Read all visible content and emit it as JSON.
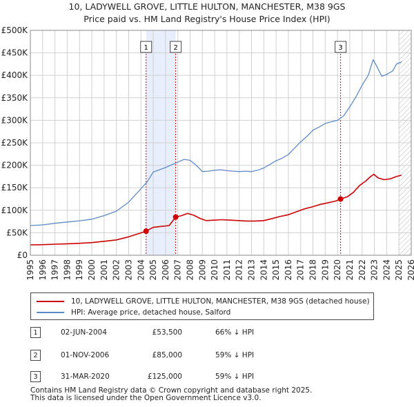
{
  "chart_data": {
    "type": "line",
    "title": "10, LADYWELL GROVE, LITTLE HULTON, MANCHESTER, M38 9GS",
    "subtitle": "Price paid vs. HM Land Registry's House Price Index (HPI)",
    "xlim": [
      1995,
      2026
    ],
    "ylim": [
      0,
      500000
    ],
    "x_ticks": [
      "1995",
      "1996",
      "1997",
      "1998",
      "1999",
      "2000",
      "2001",
      "2002",
      "2003",
      "2004",
      "2005",
      "2006",
      "2007",
      "2008",
      "2009",
      "2010",
      "2011",
      "2012",
      "2013",
      "2014",
      "2015",
      "2016",
      "2017",
      "2018",
      "2019",
      "2020",
      "2021",
      "2022",
      "2023",
      "2024",
      "2025",
      "2026"
    ],
    "y_ticks": [
      {
        "value": 0,
        "label": "£0"
      },
      {
        "value": 50000,
        "label": "£50K"
      },
      {
        "value": 100000,
        "label": "£100K"
      },
      {
        "value": 150000,
        "label": "£150K"
      },
      {
        "value": 200000,
        "label": "£200K"
      },
      {
        "value": 250000,
        "label": "£250K"
      },
      {
        "value": 300000,
        "label": "£300K"
      },
      {
        "value": 350000,
        "label": "£350K"
      },
      {
        "value": 400000,
        "label": "£400K"
      },
      {
        "value": 450000,
        "label": "£450K"
      },
      {
        "value": 500000,
        "label": "£500K"
      }
    ],
    "grid": true,
    "shaded_regions": [
      [
        2004.42,
        2006.83
      ]
    ],
    "forecast_start": 2025.0,
    "series": [
      {
        "name": "10, LADYWELL GROVE, LITTLE HULTON, MANCHESTER, M38 9GS (detached house)",
        "color": "#cc0000",
        "points": [
          [
            1995.0,
            23000
          ],
          [
            1996.0,
            23500
          ],
          [
            1997.0,
            24500
          ],
          [
            1998.0,
            25500
          ],
          [
            1999.0,
            26500
          ],
          [
            2000.0,
            28000
          ],
          [
            2001.0,
            31000
          ],
          [
            2002.0,
            34000
          ],
          [
            2003.0,
            41000
          ],
          [
            2003.8,
            48000
          ],
          [
            2004.42,
            53500
          ],
          [
            2005.0,
            62000
          ],
          [
            2005.6,
            64000
          ],
          [
            2006.3,
            66000
          ],
          [
            2006.83,
            85000
          ],
          [
            2007.3,
            88000
          ],
          [
            2007.8,
            93000
          ],
          [
            2008.3,
            89000
          ],
          [
            2008.8,
            82000
          ],
          [
            2009.3,
            77000
          ],
          [
            2010.0,
            78000
          ],
          [
            2010.6,
            79000
          ],
          [
            2011.2,
            78000
          ],
          [
            2012.0,
            77000
          ],
          [
            2012.6,
            76000
          ],
          [
            2013.3,
            76000
          ],
          [
            2014.0,
            77000
          ],
          [
            2014.6,
            81000
          ],
          [
            2015.3,
            86000
          ],
          [
            2016.0,
            90000
          ],
          [
            2016.6,
            96000
          ],
          [
            2017.3,
            103000
          ],
          [
            2018.0,
            108000
          ],
          [
            2018.6,
            113000
          ],
          [
            2019.3,
            117000
          ],
          [
            2019.9,
            121000
          ],
          [
            2020.25,
            125000
          ],
          [
            2020.8,
            130000
          ],
          [
            2021.3,
            140000
          ],
          [
            2021.8,
            155000
          ],
          [
            2022.3,
            165000
          ],
          [
            2022.7,
            175000
          ],
          [
            2022.95,
            180000
          ],
          [
            2023.3,
            172000
          ],
          [
            2023.8,
            168000
          ],
          [
            2024.3,
            170000
          ],
          [
            2024.8,
            175000
          ],
          [
            2025.2,
            178000
          ]
        ]
      },
      {
        "name": "HPI: Average price, detached house, Salford",
        "color": "#5b8ac9",
        "points": [
          [
            1995.0,
            66000
          ],
          [
            1996.0,
            67500
          ],
          [
            1997.0,
            71000
          ],
          [
            1998.0,
            74000
          ],
          [
            1999.0,
            76500
          ],
          [
            2000.0,
            80000
          ],
          [
            2001.0,
            88000
          ],
          [
            2002.0,
            98000
          ],
          [
            2003.0,
            118000
          ],
          [
            2004.0,
            148000
          ],
          [
            2004.5,
            163000
          ],
          [
            2005.0,
            185000
          ],
          [
            2005.5,
            190000
          ],
          [
            2006.0,
            195000
          ],
          [
            2006.83,
            205000
          ],
          [
            2007.5,
            213000
          ],
          [
            2008.0,
            211000
          ],
          [
            2008.5,
            200000
          ],
          [
            2009.0,
            186000
          ],
          [
            2009.5,
            187000
          ],
          [
            2010.0,
            189000
          ],
          [
            2010.5,
            190000
          ],
          [
            2011.0,
            188000
          ],
          [
            2011.5,
            187000
          ],
          [
            2012.0,
            186000
          ],
          [
            2012.5,
            187000
          ],
          [
            2013.0,
            186000
          ],
          [
            2013.5,
            189000
          ],
          [
            2014.0,
            194000
          ],
          [
            2014.5,
            202000
          ],
          [
            2015.0,
            210000
          ],
          [
            2015.5,
            216000
          ],
          [
            2016.0,
            224000
          ],
          [
            2016.5,
            238000
          ],
          [
            2017.0,
            252000
          ],
          [
            2017.5,
            264000
          ],
          [
            2018.0,
            278000
          ],
          [
            2018.5,
            285000
          ],
          [
            2019.0,
            293000
          ],
          [
            2019.5,
            297000
          ],
          [
            2020.0,
            300000
          ],
          [
            2020.5,
            310000
          ],
          [
            2021.0,
            330000
          ],
          [
            2021.5,
            352000
          ],
          [
            2022.0,
            378000
          ],
          [
            2022.5,
            400000
          ],
          [
            2022.9,
            435000
          ],
          [
            2023.2,
            420000
          ],
          [
            2023.6,
            398000
          ],
          [
            2024.0,
            402000
          ],
          [
            2024.5,
            410000
          ],
          [
            2024.8,
            425000
          ],
          [
            2025.2,
            430000
          ]
        ]
      }
    ],
    "sales": [
      {
        "label": "1",
        "x": 2004.42,
        "price": 53500
      },
      {
        "label": "2",
        "x": 2006.83,
        "price": 85000
      },
      {
        "label": "3",
        "x": 2020.25,
        "price": 125000
      }
    ]
  },
  "legend": {
    "property_label": "10, LADYWELL GROVE, LITTLE HULTON, MANCHESTER, M38 9GS (detached house)",
    "hpi_label": "HPI: Average price, detached house, Salford"
  },
  "sales_table": [
    {
      "num": "1",
      "date": "02-JUN-2004",
      "price": "£53,500",
      "hpi": "66% ↓ HPI"
    },
    {
      "num": "2",
      "date": "01-NOV-2006",
      "price": "£85,000",
      "hpi": "59% ↓ HPI"
    },
    {
      "num": "3",
      "date": "31-MAR-2020",
      "price": "£125,000",
      "hpi": "59% ↓ HPI"
    }
  ],
  "footer": {
    "line1": "Contains HM Land Registry data © Crown copyright and database right 2025.",
    "line2": "This data is licensed under the Open Government Licence v3.0."
  },
  "colors": {
    "property": "#cc0000",
    "hpi": "#5b8ac9",
    "shade": "#e8eefb",
    "grid": "#d0d0d0"
  }
}
